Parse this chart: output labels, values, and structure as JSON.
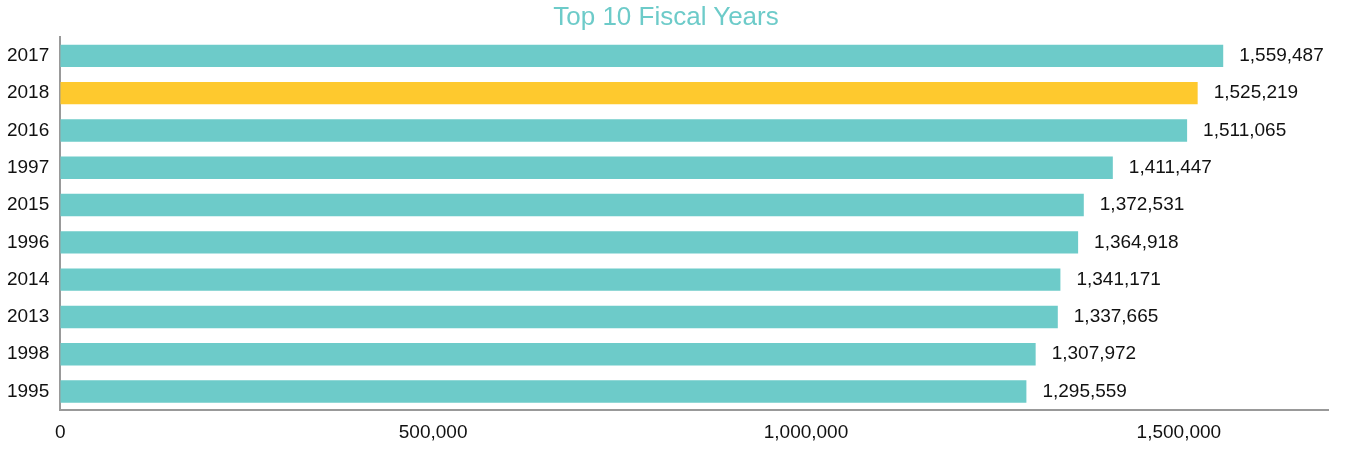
{
  "chart_data": {
    "type": "bar",
    "orientation": "horizontal",
    "title": "Top 10 Fiscal Years",
    "categories": [
      "2017",
      "2018",
      "2016",
      "1997",
      "2015",
      "1996",
      "2014",
      "2013",
      "1998",
      "1995"
    ],
    "values": [
      1559487,
      1525219,
      1511065,
      1411447,
      1372531,
      1364918,
      1341171,
      1337665,
      1307972,
      1295559
    ],
    "colors": [
      "#6dcbc9",
      "#fec92e",
      "#6dcbc9",
      "#6dcbc9",
      "#6dcbc9",
      "#6dcbc9",
      "#6dcbc9",
      "#6dcbc9",
      "#6dcbc9",
      "#6dcbc9"
    ],
    "xlim": [
      0,
      1700000
    ],
    "xticks": [
      {
        "value": 0,
        "label": "0"
      },
      {
        "value": 500000,
        "label": "500,000"
      },
      {
        "value": 1000000,
        "label": "1,000,000"
      },
      {
        "value": 1500000,
        "label": "1,500,000"
      }
    ],
    "value_labels": [
      "1,559,487",
      "1,525,219",
      "1,511,065",
      "1,411,447",
      "1,372,531",
      "1,364,918",
      "1,341,171",
      "1,337,665",
      "1,307,972",
      "1,295,559"
    ],
    "grid": false,
    "legend": false
  }
}
